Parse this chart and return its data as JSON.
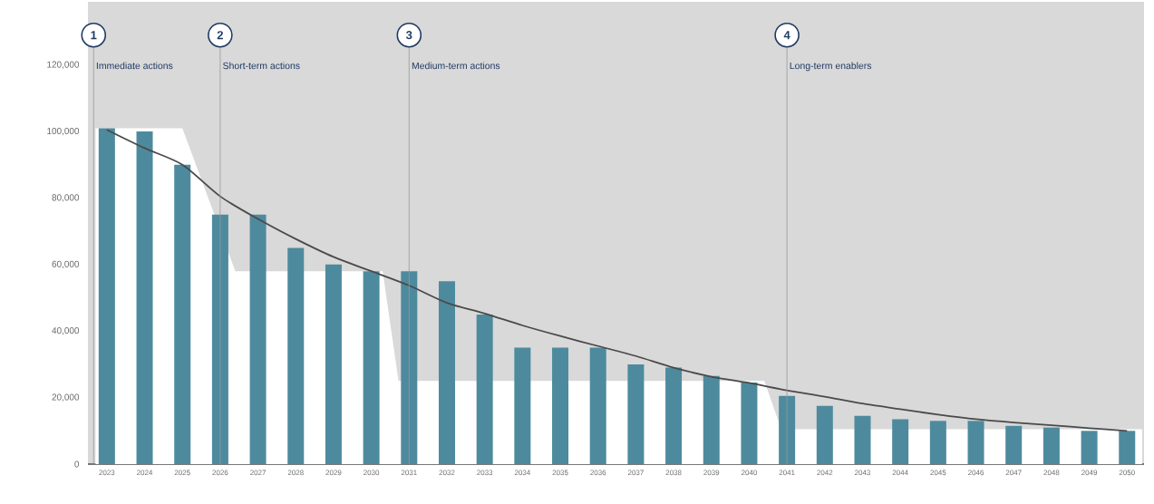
{
  "chart_data": {
    "type": "bar",
    "x": [
      2023,
      2024,
      2025,
      2026,
      2027,
      2028,
      2029,
      2030,
      2031,
      2032,
      2033,
      2034,
      2035,
      2036,
      2037,
      2038,
      2039,
      2040,
      2041,
      2042,
      2043,
      2044,
      2045,
      2046,
      2047,
      2048,
      2049,
      2050
    ],
    "series": [
      {
        "type": "area",
        "color": "#ffffff",
        "x": [
          2022.7,
          2025,
          2026.4,
          2030.3,
          2030.72,
          2040.4,
          2040.85,
          2050.4
        ],
        "values": [
          101000,
          101000,
          58000,
          58000,
          25000,
          25000,
          10500,
          10500
        ]
      },
      {
        "color": "#4e8a9e",
        "values": [
          101000,
          100000,
          90000,
          75000,
          75000,
          65000,
          60000,
          58000,
          58000,
          55000,
          45000,
          35000,
          35000,
          35000,
          30000,
          29000,
          26500,
          24500,
          20500,
          17500,
          14500,
          13500,
          13000,
          13000,
          11500,
          11000,
          10000,
          10000
        ]
      },
      {
        "type": "line",
        "color": "#4a4a4a",
        "values": [
          100500,
          95000,
          90000,
          80500,
          73700,
          67700,
          62300,
          58000,
          53700,
          48500,
          45300,
          41700,
          38500,
          35500,
          32500,
          29000,
          26300,
          24400,
          22200,
          20300,
          18200,
          16500,
          14900,
          13500,
          12500,
          11700,
          10800,
          10000
        ]
      }
    ],
    "xlim": [
      2022.5,
      2050.45
    ],
    "xticks": [
      2023,
      2024,
      2025,
      2026,
      2027,
      2028,
      2029,
      2030,
      2031,
      2032,
      2033,
      2034,
      2035,
      2036,
      2037,
      2038,
      2039,
      2040,
      2041,
      2042,
      2043,
      2044,
      2045,
      2046,
      2047,
      2048,
      2049,
      2050
    ],
    "ylim": [
      0,
      139000
    ],
    "yticks": [
      {
        "value": 0,
        "label": "0"
      },
      {
        "value": 20000,
        "label": "20,000"
      },
      {
        "value": 40000,
        "label": "40,000"
      },
      {
        "value": 60000,
        "label": "60,000"
      },
      {
        "value": 80000,
        "label": "80,000"
      },
      {
        "value": 100000,
        "label": "100,000"
      },
      {
        "value": 120000,
        "label": "120,000"
      }
    ],
    "ref_lines": [
      {
        "axis": "x",
        "value": 2022.65,
        "label": "Immediate actions",
        "color": "#999999"
      },
      {
        "axis": "x",
        "value": 2026,
        "label": "Short-term actions",
        "color": "#999999"
      },
      {
        "axis": "x",
        "value": 2031,
        "label": "Medium-term actions",
        "color": "#999999"
      },
      {
        "axis": "x",
        "value": 2041,
        "label": "Long-term enablers",
        "color": "#999999"
      }
    ],
    "annotations": [
      {
        "text": "1",
        "x": 2022.65,
        "y": 129000
      },
      {
        "text": "2",
        "x": 2026,
        "y": 129000
      },
      {
        "text": "3",
        "x": 2031,
        "y": 129000
      },
      {
        "text": "4",
        "x": 2041,
        "y": 129000
      }
    ]
  }
}
